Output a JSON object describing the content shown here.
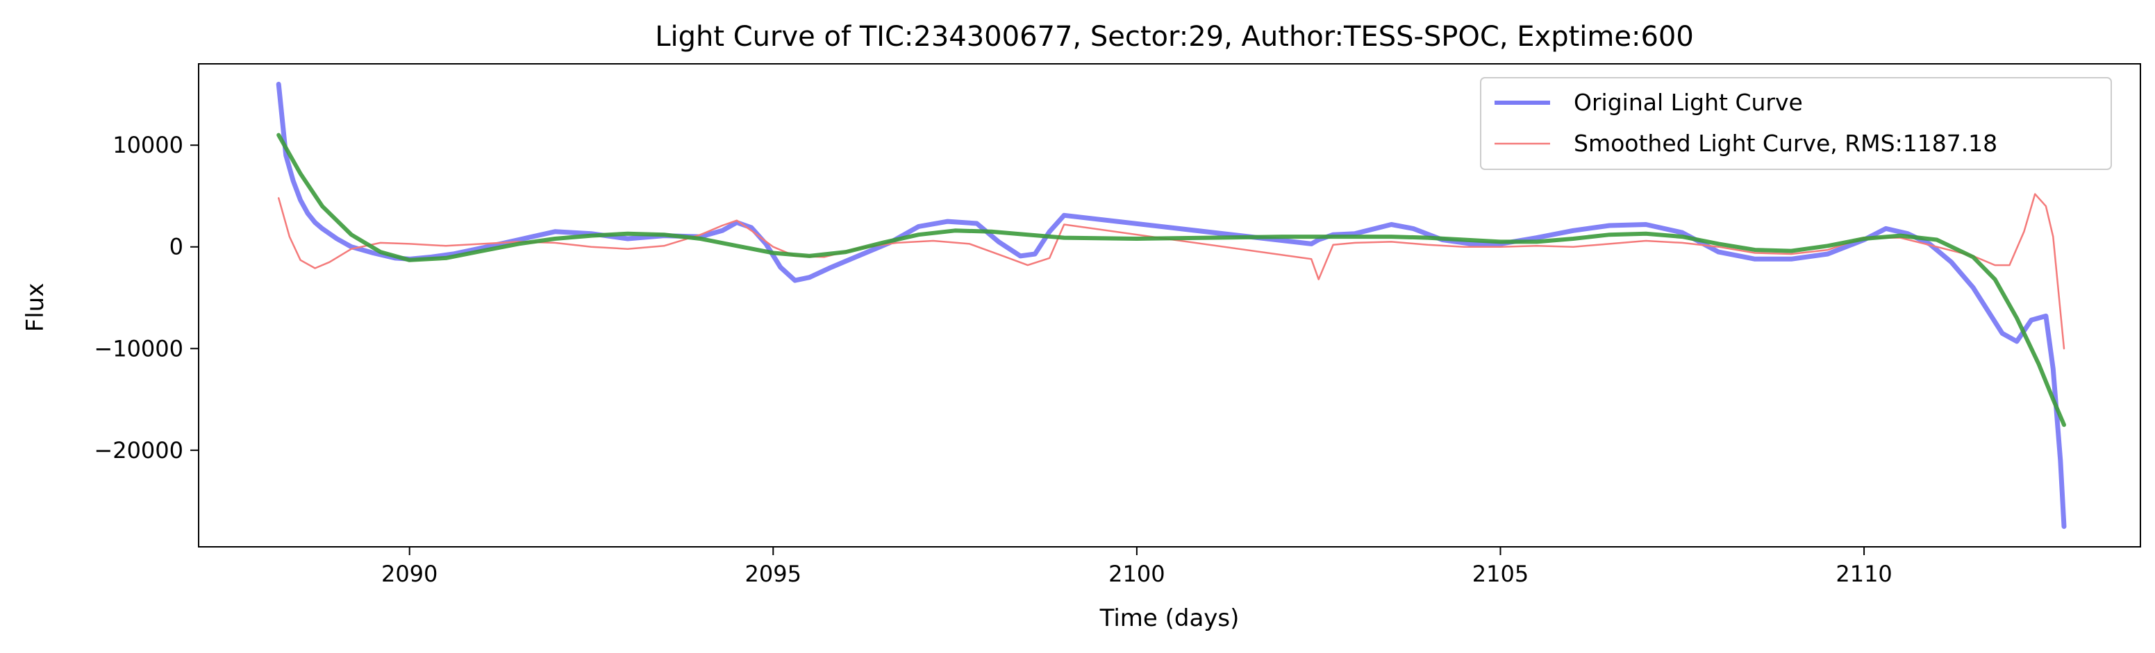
{
  "chart_data": {
    "type": "line",
    "title": "Light Curve of TIC:234300677, Sector:29, Author:TESS-SPOC, Exptime:600",
    "xlabel": "Time (days)",
    "ylabel": "Flux",
    "xlim": [
      2087.1,
      2113.8
    ],
    "ylim": [
      -29500,
      18000
    ],
    "xticks": [
      2090,
      2095,
      2100,
      2105,
      2110
    ],
    "xtick_labels": [
      "2090",
      "2095",
      "2100",
      "2105",
      "2110"
    ],
    "yticks": [
      -20000,
      -10000,
      0,
      10000
    ],
    "ytick_labels": [
      "−20000",
      "−10000",
      "0",
      "10000"
    ],
    "grid": false,
    "legend_position": "top-right",
    "series": [
      {
        "name": "Original Light Curve",
        "color": "#7b7bf5",
        "x": [
          2088.2,
          2088.3,
          2088.4,
          2088.5,
          2088.6,
          2088.7,
          2088.8,
          2089.0,
          2089.2,
          2089.5,
          2089.8,
          2090.0,
          2090.3,
          2090.6,
          2091.0,
          2091.5,
          2092.0,
          2092.5,
          2093.0,
          2093.5,
          2094.0,
          2094.3,
          2094.5,
          2094.7,
          2094.9,
          2095.1,
          2095.3,
          2095.5,
          2095.8,
          2096.2,
          2096.6,
          2097.0,
          2097.4,
          2097.8,
          2098.1,
          2098.4,
          2098.6,
          2098.8,
          2099.0,
          2102.4,
          2102.5,
          2102.7,
          2103.0,
          2103.5,
          2103.8,
          2104.2,
          2104.6,
          2105.0,
          2105.5,
          2106.0,
          2106.5,
          2107.0,
          2107.5,
          2108.0,
          2108.5,
          2109.0,
          2109.5,
          2110.0,
          2110.3,
          2110.6,
          2110.9,
          2111.2,
          2111.5,
          2111.9,
          2112.1,
          2112.3,
          2112.5,
          2112.6,
          2112.7,
          2112.75
        ],
        "y": [
          16000,
          9000,
          6500,
          4600,
          3300,
          2400,
          1800,
          800,
          0,
          -600,
          -1100,
          -1200,
          -1000,
          -700,
          -100,
          700,
          1500,
          1300,
          800,
          1100,
          1000,
          1600,
          2400,
          1900,
          300,
          -2000,
          -3300,
          -3000,
          -2000,
          -800,
          400,
          2000,
          2500,
          2300,
          500,
          -900,
          -700,
          1500,
          3100,
          300,
          700,
          1200,
          1300,
          2200,
          1800,
          700,
          300,
          300,
          900,
          1600,
          2100,
          2200,
          1400,
          -500,
          -1200,
          -1200,
          -700,
          700,
          1800,
          1300,
          300,
          -1500,
          -4000,
          -8500,
          -9300,
          -7200,
          -6800,
          -12000,
          -21000,
          -27500
        ]
      },
      {
        "name": "Smoothed Light Curve, RMS:1187.18",
        "color": "#f47a7a",
        "x": [
          2088.2,
          2088.35,
          2088.5,
          2088.7,
          2088.9,
          2089.2,
          2089.6,
          2090.0,
          2090.5,
          2091.0,
          2091.5,
          2092.0,
          2092.5,
          2093.0,
          2093.5,
          2094.0,
          2094.3,
          2094.5,
          2094.7,
          2095.0,
          2095.3,
          2095.7,
          2096.2,
          2096.7,
          2097.2,
          2097.7,
          2098.2,
          2098.5,
          2098.8,
          2099.0,
          2102.4,
          2102.5,
          2102.7,
          2103.0,
          2103.5,
          2104.0,
          2104.5,
          2105.0,
          2105.5,
          2106.0,
          2106.5,
          2107.0,
          2107.5,
          2108.0,
          2108.5,
          2109.0,
          2109.5,
          2110.0,
          2110.5,
          2111.0,
          2111.5,
          2111.8,
          2112.0,
          2112.2,
          2112.35,
          2112.5,
          2112.6,
          2112.75
        ],
        "y": [
          4800,
          1000,
          -1300,
          -2100,
          -1500,
          -200,
          400,
          300,
          100,
          300,
          500,
          400,
          0,
          -200,
          100,
          1200,
          2100,
          2600,
          1600,
          0,
          -900,
          -1000,
          -100,
          400,
          600,
          300,
          -1000,
          -1800,
          -1100,
          2200,
          -1200,
          -3200,
          200,
          400,
          500,
          200,
          0,
          0,
          100,
          0,
          300,
          600,
          400,
          0,
          -600,
          -700,
          -300,
          900,
          900,
          0,
          -900,
          -1800,
          -1800,
          1500,
          5200,
          4000,
          1000,
          -10000
        ]
      },
      {
        "name": "",
        "color": "#3b9a3b",
        "x": [
          2088.2,
          2088.5,
          2088.8,
          2089.2,
          2089.6,
          2090.0,
          2090.5,
          2091.0,
          2091.5,
          2092.0,
          2092.5,
          2093.0,
          2093.5,
          2094.0,
          2094.5,
          2095.0,
          2095.5,
          2096.0,
          2096.5,
          2097.0,
          2097.5,
          2098.0,
          2098.5,
          2099.0,
          2100.0,
          2101.0,
          2102.0,
          2102.5,
          2103.0,
          2103.5,
          2104.0,
          2104.5,
          2105.0,
          2105.5,
          2106.0,
          2106.5,
          2107.0,
          2107.5,
          2108.0,
          2108.5,
          2109.0,
          2109.5,
          2110.0,
          2110.5,
          2111.0,
          2111.5,
          2111.8,
          2112.1,
          2112.4,
          2112.6,
          2112.75
        ],
        "y": [
          11000,
          7200,
          4000,
          1200,
          -500,
          -1300,
          -1100,
          -400,
          300,
          800,
          1100,
          1300,
          1200,
          800,
          100,
          -600,
          -900,
          -500,
          400,
          1200,
          1600,
          1500,
          1200,
          900,
          800,
          900,
          1000,
          1000,
          1000,
          1000,
          900,
          700,
          500,
          500,
          800,
          1200,
          1300,
          1000,
          300,
          -300,
          -400,
          100,
          800,
          1100,
          700,
          -1000,
          -3200,
          -7000,
          -11500,
          -15000,
          -17500
        ]
      }
    ]
  }
}
